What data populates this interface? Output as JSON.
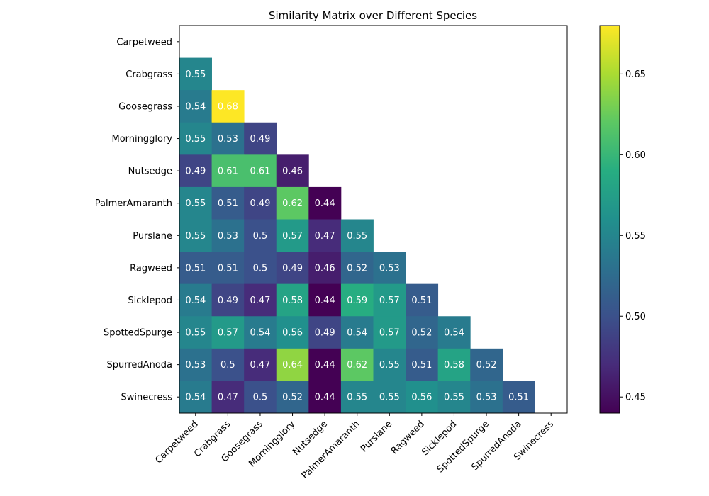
{
  "chart_data": {
    "type": "heatmap",
    "title": "Similarity Matrix over Different Species",
    "xlabel": "",
    "ylabel": "",
    "rows": [
      "Carpetweed",
      "Crabgrass",
      "Goosegrass",
      "Morningglory",
      "Nutsedge",
      "PalmerAmaranth",
      "Purslane",
      "Ragweed",
      "Sicklepod",
      "SpottedSpurge",
      "SpurredAnoda",
      "Swinecress"
    ],
    "columns": [
      "Carpetweed",
      "Crabgrass",
      "Goosegrass",
      "Morningglory",
      "Nutsedge",
      "PalmerAmaranth",
      "Purslane",
      "Ragweed",
      "Sicklepod",
      "SpottedSpurge",
      "SpurredAnoda",
      "Swinecress"
    ],
    "values": [
      [
        null,
        null,
        null,
        null,
        null,
        null,
        null,
        null,
        null,
        null,
        null,
        null
      ],
      [
        0.55,
        null,
        null,
        null,
        null,
        null,
        null,
        null,
        null,
        null,
        null,
        null
      ],
      [
        0.54,
        0.68,
        null,
        null,
        null,
        null,
        null,
        null,
        null,
        null,
        null,
        null
      ],
      [
        0.55,
        0.53,
        0.49,
        null,
        null,
        null,
        null,
        null,
        null,
        null,
        null,
        null
      ],
      [
        0.49,
        0.61,
        0.61,
        0.46,
        null,
        null,
        null,
        null,
        null,
        null,
        null,
        null
      ],
      [
        0.55,
        0.51,
        0.49,
        0.62,
        0.44,
        null,
        null,
        null,
        null,
        null,
        null,
        null
      ],
      [
        0.55,
        0.53,
        0.5,
        0.57,
        0.47,
        0.55,
        null,
        null,
        null,
        null,
        null,
        null
      ],
      [
        0.51,
        0.51,
        0.5,
        0.49,
        0.46,
        0.52,
        0.53,
        null,
        null,
        null,
        null,
        null
      ],
      [
        0.54,
        0.49,
        0.47,
        0.58,
        0.44,
        0.59,
        0.57,
        0.51,
        null,
        null,
        null,
        null
      ],
      [
        0.55,
        0.57,
        0.54,
        0.56,
        0.49,
        0.54,
        0.57,
        0.52,
        0.54,
        null,
        null,
        null
      ],
      [
        0.53,
        0.5,
        0.47,
        0.64,
        0.44,
        0.62,
        0.55,
        0.51,
        0.58,
        0.52,
        null,
        null
      ],
      [
        0.54,
        0.47,
        0.5,
        0.52,
        0.44,
        0.55,
        0.55,
        0.56,
        0.55,
        0.53,
        0.51,
        null
      ]
    ],
    "colormap": "viridis",
    "colorbar": {
      "range": [
        0.44,
        0.68
      ],
      "ticks": [
        0.45,
        0.5,
        0.55,
        0.6,
        0.65
      ],
      "tick_labels": [
        "0.45",
        "0.50",
        "0.55",
        "0.60",
        "0.65"
      ]
    },
    "grid": false,
    "mask": "upper-triangle-and-diagonal"
  }
}
